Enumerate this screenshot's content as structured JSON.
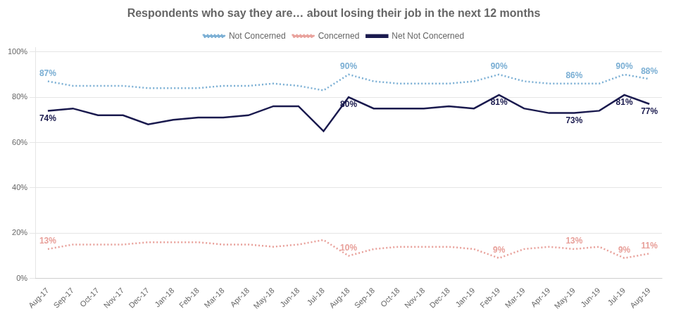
{
  "chart_data": {
    "type": "line",
    "title": "Respondents who say they are… about losing their job in the next 12 months",
    "categories": [
      "Aug-17",
      "Sep-17",
      "Oct-17",
      "Nov-17",
      "Dec-17",
      "Jan-18",
      "Feb-18",
      "Mar-18",
      "Apr-18",
      "May-18",
      "Jun-18",
      "Jul-18",
      "Aug-18",
      "Sep-18",
      "Oct-18",
      "Nov-18",
      "Dec-18",
      "Jan-19",
      "Feb-19",
      "Mar-19",
      "Apr-19",
      "May-19",
      "Jun-19",
      "Jul-19",
      "Aug-19"
    ],
    "series": [
      {
        "name": "Not Concerned",
        "color": "#7bafd4",
        "line_style": "dotted",
        "values": [
          87,
          85,
          85,
          85,
          84,
          84,
          84,
          85,
          85,
          86,
          85,
          83,
          90,
          87,
          86,
          86,
          86,
          87,
          90,
          87,
          86,
          86,
          86,
          90,
          88
        ],
        "value_labels": [
          "87%",
          null,
          null,
          null,
          null,
          null,
          null,
          null,
          null,
          null,
          null,
          null,
          "90%",
          null,
          null,
          null,
          null,
          null,
          "90%",
          null,
          null,
          "86%",
          null,
          "90%",
          "88%"
        ]
      },
      {
        "name": "Concerned",
        "color": "#e8a09a",
        "line_style": "dotted",
        "values": [
          13,
          15,
          15,
          15,
          16,
          16,
          16,
          15,
          15,
          14,
          15,
          17,
          10,
          13,
          14,
          14,
          14,
          13,
          9,
          13,
          14,
          13,
          14,
          9,
          11
        ],
        "value_labels": [
          "13%",
          null,
          null,
          null,
          null,
          null,
          null,
          null,
          null,
          null,
          null,
          null,
          "10%",
          null,
          null,
          null,
          null,
          null,
          "9%",
          null,
          null,
          "13%",
          null,
          "9%",
          "11%"
        ]
      },
      {
        "name": "Net Not Concerned",
        "color": "#1a1a4e",
        "line_style": "solid",
        "values": [
          74,
          75,
          72,
          72,
          68,
          70,
          71,
          71,
          72,
          76,
          76,
          65,
          80,
          75,
          75,
          75,
          76,
          75,
          81,
          75,
          73,
          73,
          74,
          81,
          77
        ],
        "value_labels": [
          "74%",
          null,
          null,
          null,
          null,
          null,
          null,
          null,
          null,
          null,
          null,
          null,
          "80%",
          null,
          null,
          null,
          null,
          null,
          "81%",
          null,
          null,
          "73%",
          null,
          "81%",
          "77%"
        ]
      }
    ],
    "ylim": [
      0,
      102
    ],
    "yticks": [
      {
        "value": 0,
        "label": "0%"
      },
      {
        "value": 20,
        "label": "20%"
      },
      {
        "value": 40,
        "label": "40%"
      },
      {
        "value": 60,
        "label": "60%"
      },
      {
        "value": 80,
        "label": "80%"
      },
      {
        "value": 100,
        "label": "100%"
      }
    ],
    "grid": true,
    "legend": "top"
  }
}
